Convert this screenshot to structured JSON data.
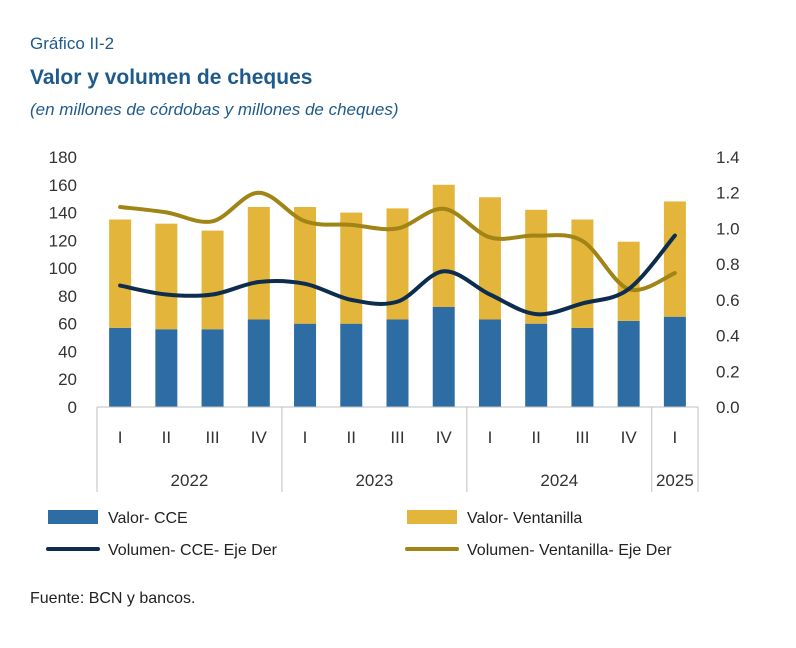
{
  "header": {
    "figure_label": "Gráfico II-2",
    "title": "Valor y volumen de cheques",
    "subtitle": "(en millones de córdobas y millones de cheques)"
  },
  "footer": {
    "source": "Fuente: BCN y bancos."
  },
  "colors": {
    "cce_bar": "#2e6da4",
    "ventanilla_bar": "#e3b53b",
    "cce_line": "#0d2d4f",
    "ventanilla_line": "#a08415"
  },
  "chart_data": {
    "type": "bar",
    "stacked": true,
    "categories": [
      "I",
      "II",
      "III",
      "IV",
      "I",
      "II",
      "III",
      "IV",
      "I",
      "II",
      "III",
      "IV",
      "I"
    ],
    "year_groups": [
      {
        "label": "2022",
        "count": 4
      },
      {
        "label": "2023",
        "count": 4
      },
      {
        "label": "2024",
        "count": 4
      },
      {
        "label": "2025",
        "count": 1
      }
    ],
    "y_left": {
      "ticks": [
        "0",
        "20",
        "40",
        "60",
        "80",
        "100",
        "120",
        "140",
        "160",
        "180"
      ],
      "range": [
        0,
        180
      ]
    },
    "y_right": {
      "ticks": [
        "0.0",
        "0.2",
        "0.4",
        "0.6",
        "0.8",
        "1.0",
        "1.2",
        "1.4"
      ],
      "range": [
        0,
        1.4
      ]
    },
    "legend_position": "bottom",
    "series": [
      {
        "name": "Valor- CCE",
        "kind": "bar",
        "axis": "left",
        "values": [
          57,
          56,
          56,
          63,
          60,
          60,
          63,
          72,
          63,
          60,
          57,
          62,
          65
        ]
      },
      {
        "name": "Valor- Ventanilla",
        "kind": "bar",
        "axis": "left",
        "values": [
          78,
          76,
          71,
          81,
          84,
          80,
          80,
          88,
          88,
          82,
          78,
          57,
          83
        ]
      },
      {
        "name": "Volumen- CCE- Eje Der",
        "kind": "line",
        "axis": "right",
        "values": [
          0.68,
          0.63,
          0.63,
          0.7,
          0.69,
          0.6,
          0.59,
          0.76,
          0.63,
          0.52,
          0.58,
          0.66,
          0.96
        ]
      },
      {
        "name": "Volumen- Ventanilla- Eje Der",
        "kind": "line",
        "axis": "right",
        "values": [
          1.12,
          1.09,
          1.04,
          1.2,
          1.04,
          1.02,
          1.0,
          1.11,
          0.95,
          0.96,
          0.93,
          0.66,
          0.75
        ]
      }
    ]
  }
}
